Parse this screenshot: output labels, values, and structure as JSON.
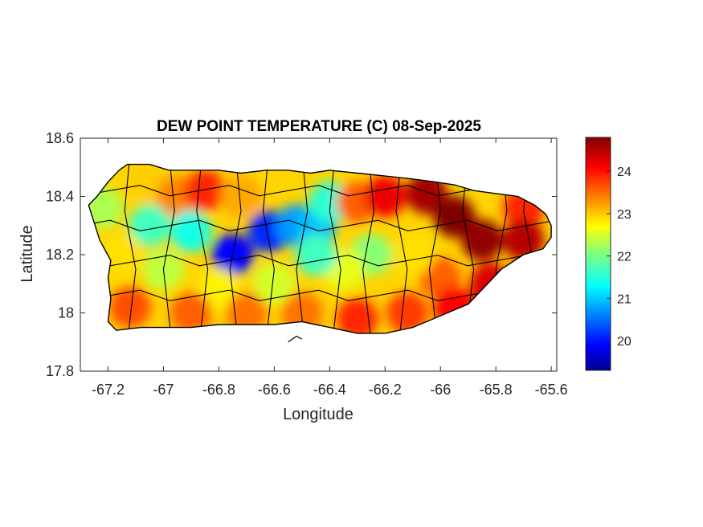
{
  "figure": {
    "title": "DEW POINT TEMPERATURE (C) 08-Sep-2025",
    "xlabel": "Longitude",
    "ylabel": "Latitude"
  },
  "map": {
    "region": "Puerto Rico",
    "variable": "Dew point temperature",
    "units": "C",
    "date": "08-Sep-2025",
    "xlim": [
      -67.3,
      -65.58
    ],
    "ylim": [
      17.8,
      18.6
    ],
    "x_ticks": [
      -67.2,
      -67,
      -66.8,
      -66.6,
      -66.4,
      -66.2,
      -66,
      -65.8,
      -65.6
    ],
    "x_tick_labels": [
      "-67.2",
      "-67",
      "-66.8",
      "-66.6",
      "-66.4",
      "-66.2",
      "-66",
      "-65.8",
      "-65.6"
    ],
    "y_ticks": [
      17.8,
      18,
      18.2,
      18.4,
      18.6
    ],
    "y_tick_labels": [
      "17.8",
      "18",
      "18.2",
      "18.4",
      "18.6"
    ],
    "grid": false,
    "colormap": "jet",
    "municipality_boundaries": true,
    "coastline_lonlat": [
      [
        -67.27,
        18.37
      ],
      [
        -67.24,
        18.4
      ],
      [
        -67.2,
        18.45
      ],
      [
        -67.16,
        18.49
      ],
      [
        -67.13,
        18.51
      ],
      [
        -67.05,
        18.51
      ],
      [
        -66.98,
        18.49
      ],
      [
        -66.9,
        18.49
      ],
      [
        -66.8,
        18.49
      ],
      [
        -66.72,
        18.48
      ],
      [
        -66.63,
        18.49
      ],
      [
        -66.55,
        18.49
      ],
      [
        -66.47,
        18.48
      ],
      [
        -66.4,
        18.49
      ],
      [
        -66.3,
        18.48
      ],
      [
        -66.2,
        18.47
      ],
      [
        -66.1,
        18.46
      ],
      [
        -66.02,
        18.45
      ],
      [
        -65.95,
        18.44
      ],
      [
        -65.88,
        18.42
      ],
      [
        -65.8,
        18.41
      ],
      [
        -65.72,
        18.4
      ],
      [
        -65.66,
        18.37
      ],
      [
        -65.62,
        18.34
      ],
      [
        -65.6,
        18.3
      ],
      [
        -65.6,
        18.26
      ],
      [
        -65.63,
        18.22
      ],
      [
        -65.7,
        18.2
      ],
      [
        -65.78,
        18.15
      ],
      [
        -65.84,
        18.09
      ],
      [
        -65.9,
        18.03
      ],
      [
        -66,
        17.99
      ],
      [
        -66.1,
        17.95
      ],
      [
        -66.2,
        17.93
      ],
      [
        -66.3,
        17.93
      ],
      [
        -66.4,
        17.95
      ],
      [
        -66.5,
        17.97
      ],
      [
        -66.6,
        17.96
      ],
      [
        -66.7,
        17.96
      ],
      [
        -66.8,
        17.96
      ],
      [
        -66.9,
        17.95
      ],
      [
        -67,
        17.95
      ],
      [
        -67.08,
        17.95
      ],
      [
        -67.17,
        17.94
      ],
      [
        -67.2,
        17.97
      ],
      [
        -67.19,
        18.05
      ],
      [
        -67.2,
        18.12
      ],
      [
        -67.19,
        18.18
      ],
      [
        -67.23,
        18.25
      ],
      [
        -67.25,
        18.31
      ]
    ],
    "islets_lonlat": [
      [
        [
          -66.55,
          17.9
        ],
        [
          -66.52,
          17.92
        ],
        [
          -66.5,
          17.91
        ]
      ]
    ]
  },
  "colorbar": {
    "min": 19.3,
    "max": 24.8,
    "ticks": [
      20,
      21,
      22,
      23,
      24
    ],
    "tick_labels": [
      "20",
      "21",
      "22",
      "23",
      "24"
    ]
  },
  "chart_data": {
    "type": "heatmap",
    "title": "DEW POINT TEMPERATURE (C) 08-Sep-2025",
    "xlabel": "Longitude",
    "ylabel": "Latitude",
    "xlim": [
      -67.3,
      -65.58
    ],
    "ylim": [
      17.8,
      18.6
    ],
    "value_range": [
      19.3,
      24.8
    ],
    "grid": false,
    "legend": "colorbar right",
    "field_points": [
      {
        "x": -67.22,
        "y": 18.36,
        "value": 22.3
      },
      {
        "x": -67.05,
        "y": 18.45,
        "value": 23.0
      },
      {
        "x": -66.95,
        "y": 18.4,
        "value": 23.4
      },
      {
        "x": -66.85,
        "y": 18.42,
        "value": 23.9
      },
      {
        "x": -66.72,
        "y": 18.4,
        "value": 23.2
      },
      {
        "x": -67.05,
        "y": 18.3,
        "value": 21.7
      },
      {
        "x": -66.9,
        "y": 18.28,
        "value": 21.5
      },
      {
        "x": -66.75,
        "y": 18.2,
        "value": 20.0
      },
      {
        "x": -66.62,
        "y": 18.28,
        "value": 20.2
      },
      {
        "x": -66.52,
        "y": 18.3,
        "value": 20.8
      },
      {
        "x": -66.45,
        "y": 18.3,
        "value": 21.0
      },
      {
        "x": -66.4,
        "y": 18.38,
        "value": 21.6
      },
      {
        "x": -66.3,
        "y": 18.38,
        "value": 23.6
      },
      {
        "x": -66.2,
        "y": 18.4,
        "value": 24.2
      },
      {
        "x": -66.05,
        "y": 18.41,
        "value": 24.6
      },
      {
        "x": -65.95,
        "y": 18.33,
        "value": 24.8
      },
      {
        "x": -65.85,
        "y": 18.25,
        "value": 24.7
      },
      {
        "x": -65.7,
        "y": 18.36,
        "value": 23.9
      },
      {
        "x": -65.7,
        "y": 18.25,
        "value": 24.5
      },
      {
        "x": -65.82,
        "y": 18.1,
        "value": 24.3
      },
      {
        "x": -66.0,
        "y": 18.12,
        "value": 23.6
      },
      {
        "x": -66.1,
        "y": 18.2,
        "value": 22.9
      },
      {
        "x": -66.25,
        "y": 18.2,
        "value": 22.1
      },
      {
        "x": -66.35,
        "y": 18.15,
        "value": 22.6
      },
      {
        "x": -66.45,
        "y": 18.2,
        "value": 21.7
      },
      {
        "x": -66.6,
        "y": 18.1,
        "value": 22.5
      },
      {
        "x": -66.8,
        "y": 18.08,
        "value": 22.8
      },
      {
        "x": -67.0,
        "y": 18.15,
        "value": 22.4
      },
      {
        "x": -67.15,
        "y": 18.2,
        "value": 22.9
      },
      {
        "x": -67.12,
        "y": 18.02,
        "value": 23.7
      },
      {
        "x": -66.9,
        "y": 18.0,
        "value": 23.6
      },
      {
        "x": -66.7,
        "y": 18.0,
        "value": 23.5
      },
      {
        "x": -66.5,
        "y": 18.0,
        "value": 23.5
      },
      {
        "x": -66.3,
        "y": 17.98,
        "value": 23.9
      },
      {
        "x": -66.12,
        "y": 18.0,
        "value": 23.8
      },
      {
        "x": -65.95,
        "y": 18.02,
        "value": 24.1
      }
    ]
  },
  "colors": {
    "boundary": "#000000",
    "axis": "#262626",
    "background": "#ffffff"
  }
}
